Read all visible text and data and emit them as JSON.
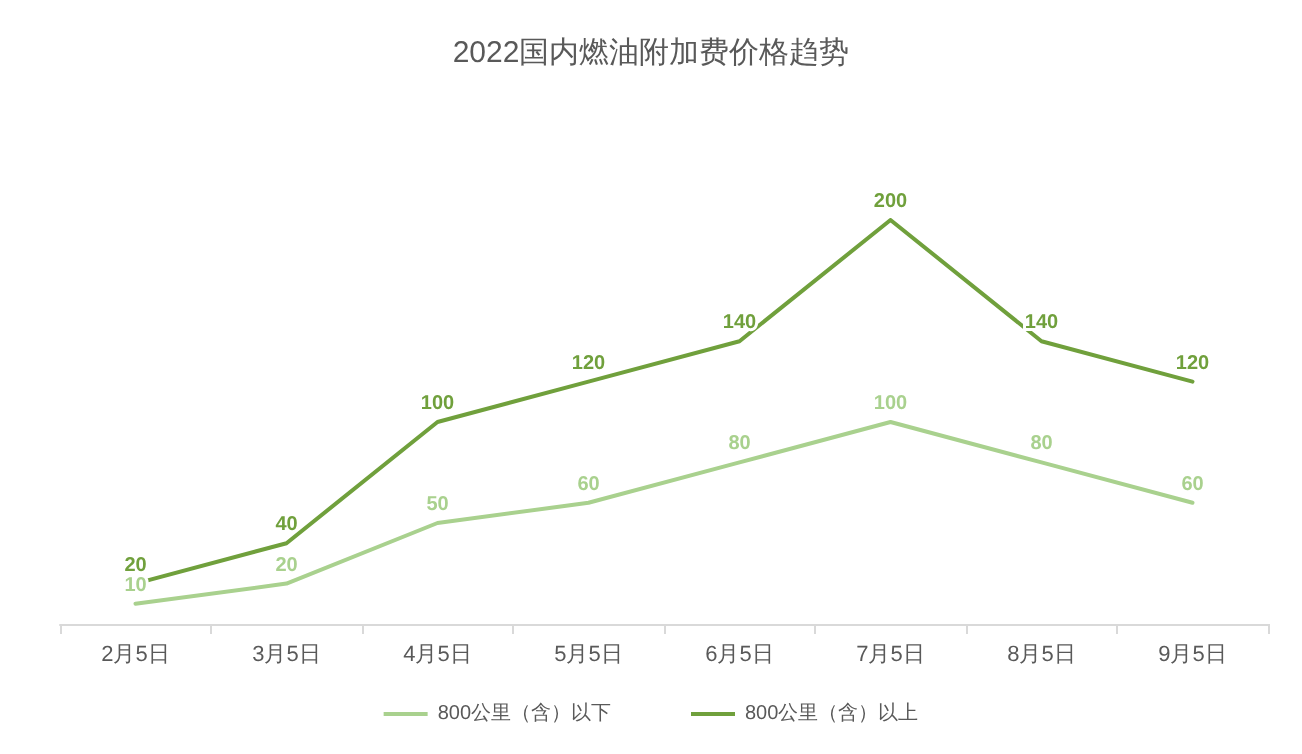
{
  "chart_data": {
    "type": "line",
    "title": "2022国内燃油附加费价格趋势",
    "categories": [
      "2月5日",
      "3月5日",
      "4月5日",
      "5月5日",
      "6月5日",
      "7月5日",
      "8月5日",
      "9月5日"
    ],
    "series": [
      {
        "name": "800公里（含）以下",
        "color": "#a9d18e",
        "values": [
          10,
          20,
          50,
          60,
          80,
          100,
          80,
          60
        ]
      },
      {
        "name": "800公里（含）以上",
        "color": "#70a03c",
        "values": [
          20,
          40,
          100,
          120,
          140,
          200,
          140,
          120
        ]
      }
    ],
    "data_labels": true,
    "legend": "bottom",
    "grid": false,
    "marker": "none",
    "line_style": "solid"
  }
}
